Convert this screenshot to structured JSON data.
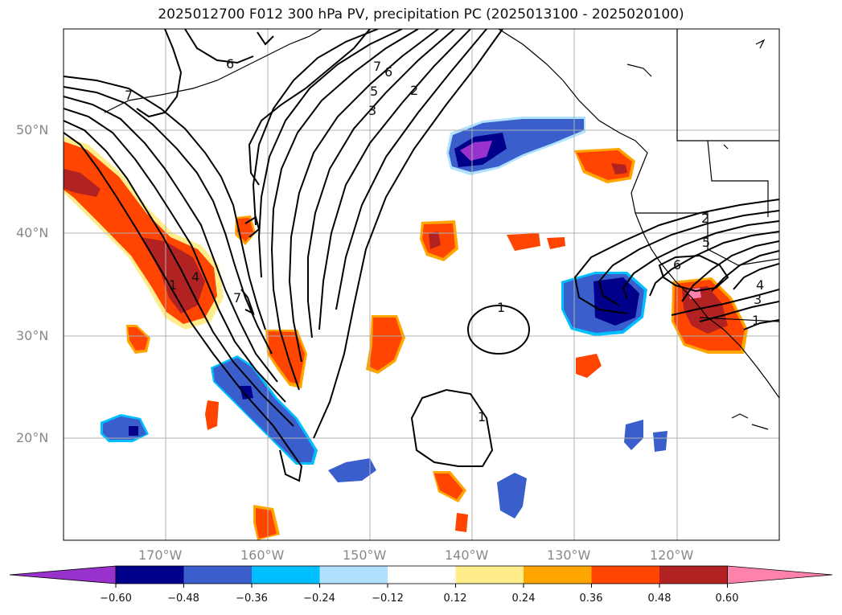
{
  "title": "2025012700 F012 300 hPa PV, precipitation PC (2025013100 - 2025020100)",
  "axes": {
    "lat_labels": [
      "50°N",
      "40°N",
      "30°N",
      "20°N"
    ],
    "lon_labels": [
      "170°W",
      "160°W",
      "150°W",
      "140°W",
      "130°W",
      "120°W"
    ]
  },
  "pv_contour_labels": {
    "north_jet": [
      "7",
      "6",
      "7",
      "6",
      "5",
      "3",
      "2"
    ],
    "west_trough": [
      "1",
      "4",
      "7"
    ],
    "east_ridge": [
      "2",
      "5",
      "6",
      "4",
      "3",
      "1"
    ],
    "isolated": [
      "1",
      "1"
    ]
  },
  "colorbar": {
    "ticks": [
      "−0.60",
      "−0.48",
      "−0.36",
      "−0.24",
      "−0.12",
      "0.12",
      "0.24",
      "0.36",
      "0.48",
      "0.60"
    ],
    "colors": [
      "#9932cc",
      "#00008b",
      "#3a5fcd",
      "#00bfff",
      "#b0e2ff",
      "#ffffff",
      "#ffec8b",
      "#ffa500",
      "#ff4500",
      "#b22222",
      "#ff82ab"
    ],
    "extend": "both"
  }
}
